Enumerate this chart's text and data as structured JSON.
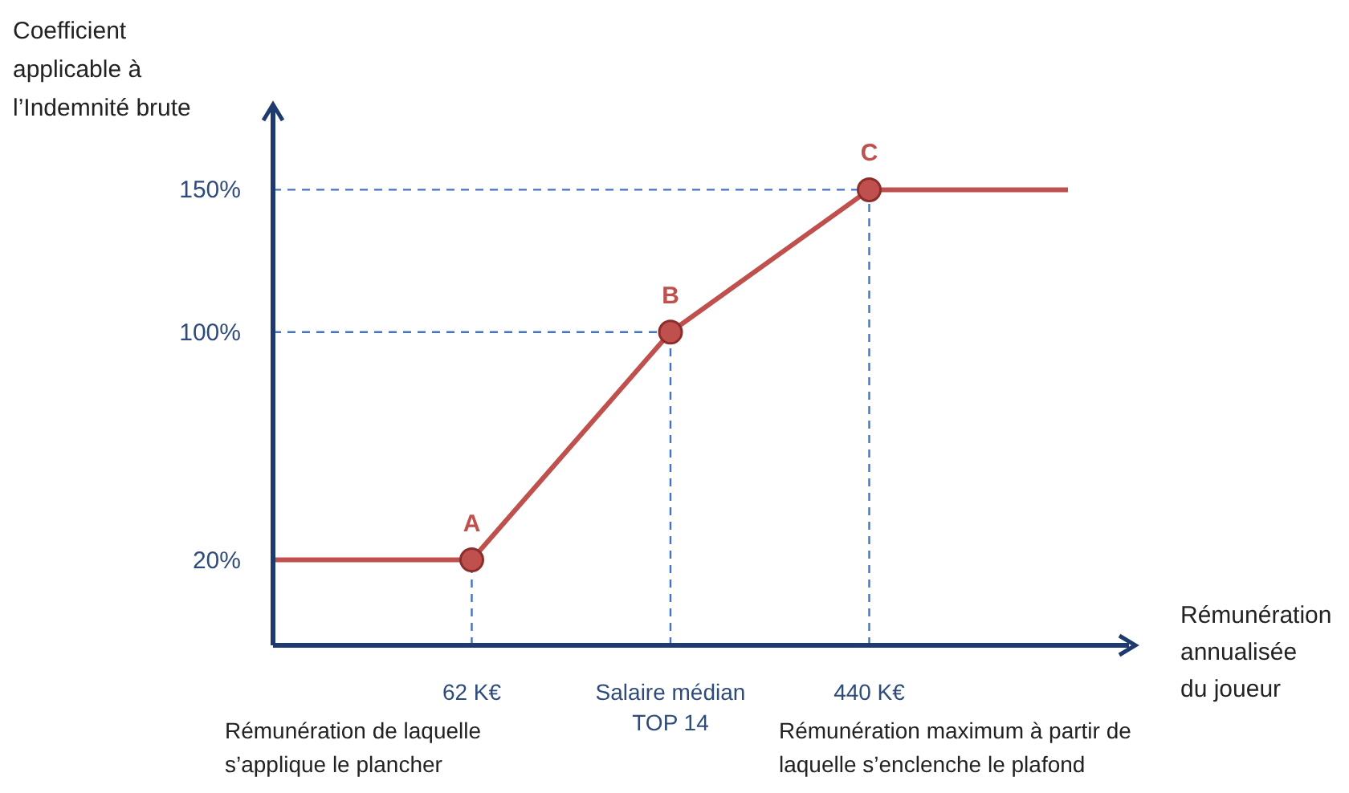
{
  "chart_data": {
    "type": "line",
    "ylabel": "Coefficient applicable à l’Indemnité brute",
    "xlabel": "Rémunération annualisée du joueur",
    "categories": [
      null,
      "62 K€",
      "Salaire médian TOP 14",
      "440 K€",
      null
    ],
    "ylim": [
      -10,
      180
    ],
    "yticks": [
      {
        "value": 20,
        "label": "20%"
      },
      {
        "value": 100,
        "label": "100%"
      },
      {
        "value": 150,
        "label": "150%"
      }
    ],
    "series": [
      {
        "color": "#c0504d",
        "values": [
          20,
          20,
          100,
          150,
          150
        ],
        "marker": "none"
      },
      {
        "type": "scatter",
        "color": "#c0504d",
        "values": [
          null,
          20,
          100,
          150,
          null
        ],
        "marker": "circle"
      }
    ],
    "ref_lines": [
      {
        "axis": "y",
        "value": 100,
        "color": "#4472c4",
        "line_style": "dashed"
      },
      {
        "axis": "y",
        "value": 150,
        "color": "#4472c4",
        "line_style": "dashed"
      },
      {
        "axis": "x",
        "value": "62 K€",
        "color": "#4472c4",
        "line_style": "dashed"
      },
      {
        "axis": "x",
        "value": "Salaire médian TOP 14",
        "color": "#4472c4",
        "line_style": "dashed"
      },
      {
        "axis": "x",
        "value": "440 K€",
        "color": "#4472c4",
        "line_style": "dashed"
      }
    ],
    "annotations": [
      {
        "text": "A",
        "x": "62 K€",
        "y": 20
      },
      {
        "text": "B",
        "x": "Salaire médian TOP 14",
        "y": 100
      },
      {
        "text": "C",
        "x": "440 K€",
        "y": 150
      },
      "Rémunération de laquelle s’applique le plancher",
      "Rémunération maximum à partir de laquelle s’enclenche le plafond"
    ],
    "grid": false
  }
}
